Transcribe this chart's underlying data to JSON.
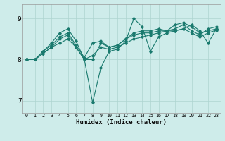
{
  "xlabel": "Humidex (Indice chaleur)",
  "background_color": "#ceecea",
  "grid_color": "#aed4d0",
  "line_color": "#1a7a6e",
  "xlim": [
    -0.5,
    23.5
  ],
  "ylim": [
    6.7,
    9.35
  ],
  "yticks": [
    7,
    8,
    9
  ],
  "xticks": [
    0,
    1,
    2,
    3,
    4,
    5,
    6,
    7,
    8,
    9,
    10,
    11,
    12,
    13,
    14,
    15,
    16,
    17,
    18,
    19,
    20,
    21,
    22,
    23
  ],
  "series": [
    [
      8.0,
      8.0,
      8.2,
      8.4,
      8.65,
      8.75,
      8.45,
      8.0,
      8.0,
      8.4,
      8.3,
      8.35,
      8.5,
      8.65,
      8.7,
      8.7,
      8.75,
      8.7,
      8.85,
      8.9,
      8.8,
      8.65,
      8.7,
      8.75
    ],
    [
      8.0,
      8.0,
      8.2,
      8.35,
      8.55,
      8.65,
      8.35,
      8.05,
      8.4,
      8.45,
      8.3,
      8.35,
      8.5,
      8.6,
      8.65,
      8.65,
      8.7,
      8.7,
      8.75,
      8.85,
      8.7,
      8.6,
      8.75,
      8.8
    ],
    [
      8.0,
      8.0,
      8.15,
      8.3,
      8.4,
      8.5,
      8.3,
      8.0,
      8.1,
      8.3,
      8.25,
      8.3,
      8.4,
      8.5,
      8.55,
      8.6,
      8.65,
      8.7,
      8.7,
      8.75,
      8.65,
      8.55,
      8.65,
      8.72
    ],
    [
      8.0,
      8.0,
      8.15,
      8.3,
      8.5,
      8.6,
      8.3,
      8.0,
      6.95,
      7.8,
      8.2,
      8.25,
      8.45,
      9.0,
      8.8,
      8.2,
      8.55,
      8.65,
      8.7,
      8.75,
      8.85,
      8.7,
      8.4,
      8.75
    ]
  ]
}
